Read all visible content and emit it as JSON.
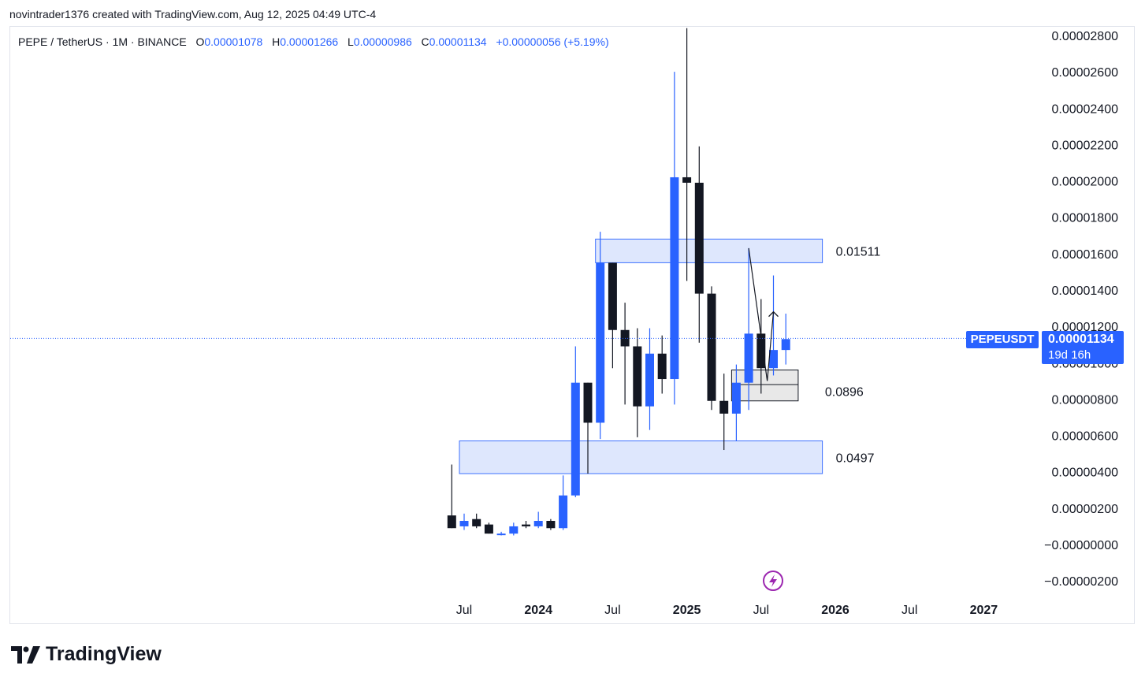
{
  "header": {
    "caption": "novintrader1376 created with TradingView.com, Aug 12, 2025 04:49 UTC-4"
  },
  "legend": {
    "symbol": "PEPE / TetherUS · 1M · BINANCE",
    "o_label": "O",
    "o_value": "0.00001078",
    "h_label": "H",
    "h_value": "0.00001266",
    "l_label": "L",
    "l_value": "0.00000986",
    "c_label": "C",
    "c_value": "0.00001134",
    "change": "+0.00000056 (+5.19%)"
  },
  "price_label": {
    "ticker": "PEPEUSDT",
    "price": "0.00001134",
    "countdown": "19d 16h"
  },
  "brand": {
    "name": "TradingView"
  },
  "colors": {
    "up": "#2962ff",
    "down": "#131722",
    "zone_fill": "#dbe5fd",
    "zone_stroke": "#2962ff",
    "grey_zone": "#e8e8e8"
  },
  "chart_data": {
    "type": "candlestick",
    "interval": "1M",
    "y_tick_labels": [
      "0.00002800",
      "0.00002600",
      "0.00002400",
      "0.00002200",
      "0.00002000",
      "0.00001800",
      "0.00001600",
      "0.00001400",
      "0.00001200",
      "0.00001000",
      "0.00000800",
      "0.00000600",
      "0.00000400",
      "0.00000200",
      "−0.00000000",
      "−0.00000200"
    ],
    "y_ticks": [
      2.8e-05,
      2.6e-05,
      2.4e-05,
      2.2e-05,
      2e-05,
      1.8e-05,
      1.6e-05,
      1.4e-05,
      1.2e-05,
      1e-05,
      8e-06,
      6e-06,
      4e-06,
      2e-06,
      0,
      -2e-06
    ],
    "ylim": [
      -2.5e-06,
      2.85e-05
    ],
    "x_tick_labels": [
      {
        "label": "Jul",
        "month": 6
      },
      {
        "label": "2024",
        "month": 12
      },
      {
        "label": "Jul",
        "month": 18
      },
      {
        "label": "2025",
        "month": 24
      },
      {
        "label": "Jul",
        "month": 30
      },
      {
        "label": "2026",
        "month": 36
      },
      {
        "label": "Jul",
        "month": 42
      },
      {
        "label": "2027",
        "month": 48
      }
    ],
    "candles": [
      {
        "t": 5,
        "o": 1.6e-06,
        "h": 4.4e-06,
        "l": 9e-07,
        "c": 9e-07
      },
      {
        "t": 6,
        "o": 1e-06,
        "h": 1.7e-06,
        "l": 8e-07,
        "c": 1.3e-06
      },
      {
        "t": 7,
        "o": 1.4e-06,
        "h": 1.7e-06,
        "l": 9e-07,
        "c": 1e-06
      },
      {
        "t": 8,
        "o": 1.1e-06,
        "h": 1.2e-06,
        "l": 6e-07,
        "c": 6e-07
      },
      {
        "t": 9,
        "o": 6e-07,
        "h": 7e-07,
        "l": 5e-07,
        "c": 6e-07
      },
      {
        "t": 10,
        "o": 6e-07,
        "h": 1.2e-06,
        "l": 5e-07,
        "c": 1e-06
      },
      {
        "t": 11,
        "o": 1.1e-06,
        "h": 1.3e-06,
        "l": 9e-07,
        "c": 1e-06
      },
      {
        "t": 12,
        "o": 1e-06,
        "h": 1.8e-06,
        "l": 9e-07,
        "c": 1.3e-06
      },
      {
        "t": 13,
        "o": 1.3e-06,
        "h": 1.4e-06,
        "l": 8e-07,
        "c": 9e-07
      },
      {
        "t": 14,
        "o": 9e-07,
        "h": 3.8e-06,
        "l": 8e-07,
        "c": 2.7e-06
      },
      {
        "t": 15,
        "o": 2.7e-06,
        "h": 1.09e-05,
        "l": 2.6e-06,
        "c": 8.9e-06
      },
      {
        "t": 16,
        "o": 8.9e-06,
        "h": 8.9e-06,
        "l": 3.9e-06,
        "c": 6.7e-06
      },
      {
        "t": 17,
        "o": 6.7e-06,
        "h": 1.72e-05,
        "l": 5.8e-06,
        "c": 1.55e-05
      },
      {
        "t": 18,
        "o": 1.55e-05,
        "h": 1.55e-05,
        "l": 9.7e-06,
        "c": 1.18e-05
      },
      {
        "t": 19,
        "o": 1.18e-05,
        "h": 1.33e-05,
        "l": 7.7e-06,
        "c": 1.09e-05
      },
      {
        "t": 20,
        "o": 1.09e-05,
        "h": 1.19e-05,
        "l": 5.9e-06,
        "c": 7.6e-06
      },
      {
        "t": 21,
        "o": 7.6e-06,
        "h": 1.19e-05,
        "l": 6.3e-06,
        "c": 1.05e-05
      },
      {
        "t": 22,
        "o": 1.05e-05,
        "h": 1.15e-05,
        "l": 8.3e-06,
        "c": 9.1e-06
      },
      {
        "t": 23,
        "o": 9.1e-06,
        "h": 2.6e-05,
        "l": 7.7e-06,
        "c": 2.02e-05
      },
      {
        "t": 24,
        "o": 2.02e-05,
        "h": 2.84e-05,
        "l": 1.45e-05,
        "c": 1.99e-05
      },
      {
        "t": 25,
        "o": 1.99e-05,
        "h": 2.19e-05,
        "l": 1.11e-05,
        "c": 1.38e-05
      },
      {
        "t": 26,
        "o": 1.38e-05,
        "h": 1.42e-05,
        "l": 7.4e-06,
        "c": 7.9e-06
      },
      {
        "t": 27,
        "o": 7.9e-06,
        "h": 9.4e-06,
        "l": 5.2e-06,
        "c": 7.2e-06
      },
      {
        "t": 28,
        "o": 7.2e-06,
        "h": 9.9e-06,
        "l": 5.7e-06,
        "c": 8.9e-06
      },
      {
        "t": 29,
        "o": 8.9e-06,
        "h": 1.63e-05,
        "l": 7.4e-06,
        "c": 1.16e-05
      },
      {
        "t": 30,
        "o": 1.16e-05,
        "h": 1.35e-05,
        "l": 8.3e-06,
        "c": 9.7e-06
      },
      {
        "t": 31,
        "o": 9.7e-06,
        "h": 1.48e-05,
        "l": 9.3e-06,
        "c": 1.07e-05
      },
      {
        "t": 32,
        "o": 1.07e-05,
        "h": 1.27e-05,
        "l": 9.9e-06,
        "c": 1.13e-05
      }
    ],
    "zones": [
      {
        "name": "upper-supply-zone",
        "t_start": 17,
        "t_end": 34,
        "top": 1.68e-05,
        "bottom": 1.55e-05,
        "label": "0.01511"
      },
      {
        "name": "lower-demand-zone",
        "t_start": 6,
        "t_end": 34,
        "top": 5.7e-06,
        "bottom": 3.9e-06,
        "label": "0.0497"
      }
    ],
    "grey_box": {
      "t_start": 28,
      "t_end": 33,
      "top": 9.6e-06,
      "bottom": 7.9e-06,
      "mid": 8.8e-06,
      "label": "0.0896"
    },
    "current_price": 1.134e-05,
    "projection_path": [
      {
        "t": 29,
        "v": 1.63e-05
      },
      {
        "t": 30.5,
        "v": 9e-06
      },
      {
        "t": 31,
        "v": 1.28e-05
      }
    ]
  }
}
